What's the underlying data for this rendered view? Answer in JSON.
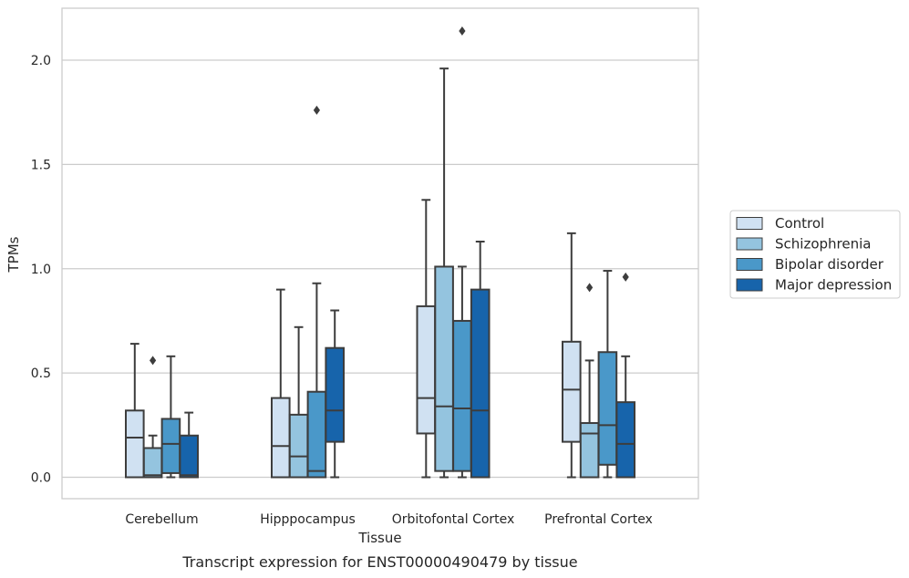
{
  "chart_data": {
    "type": "box",
    "title": "",
    "caption": "Transcript expression for ENST00000490479 by tissue",
    "xlabel": "Tissue",
    "ylabel": "TPMs",
    "ylim": [
      -0.1,
      2.27
    ],
    "yticks": [
      0.0,
      0.5,
      1.0,
      1.5,
      2.0
    ],
    "ytick_labels": [
      "0.0",
      "0.5",
      "1.0",
      "1.5",
      "2.0"
    ],
    "grid": "horizontal",
    "legend_position": "right",
    "categories": [
      "Cerebellum",
      "Hipppocampus",
      "Orbitofontal Cortex",
      "Prefrontal Cortex"
    ],
    "series": [
      {
        "name": "Control",
        "color": "#d0e1f2",
        "boxes": [
          {
            "whislo": 0.0,
            "q1": 0.0,
            "med": 0.19,
            "q3": 0.32,
            "whishi": 0.64,
            "fliers": []
          },
          {
            "whislo": 0.0,
            "q1": 0.0,
            "med": 0.15,
            "q3": 0.38,
            "whishi": 0.9,
            "fliers": []
          },
          {
            "whislo": 0.0,
            "q1": 0.21,
            "med": 0.38,
            "q3": 0.82,
            "whishi": 1.33,
            "fliers": []
          },
          {
            "whislo": 0.0,
            "q1": 0.17,
            "med": 0.42,
            "q3": 0.65,
            "whishi": 1.17,
            "fliers": []
          }
        ]
      },
      {
        "name": "Schizophrenia",
        "color": "#94c4df",
        "boxes": [
          {
            "whislo": 0.0,
            "q1": 0.0,
            "med": 0.01,
            "q3": 0.14,
            "whishi": 0.2,
            "fliers": [
              0.56
            ]
          },
          {
            "whislo": 0.0,
            "q1": 0.0,
            "med": 0.1,
            "q3": 0.3,
            "whishi": 0.72,
            "fliers": []
          },
          {
            "whislo": 0.0,
            "q1": 0.03,
            "med": 0.34,
            "q3": 1.01,
            "whishi": 1.96,
            "fliers": []
          },
          {
            "whislo": 0.0,
            "q1": 0.0,
            "med": 0.21,
            "q3": 0.26,
            "whishi": 0.56,
            "fliers": [
              0.91
            ]
          }
        ]
      },
      {
        "name": "Bipolar disorder",
        "color": "#4a98c9",
        "boxes": [
          {
            "whislo": 0.0,
            "q1": 0.02,
            "med": 0.16,
            "q3": 0.28,
            "whishi": 0.58,
            "fliers": []
          },
          {
            "whislo": 0.0,
            "q1": 0.0,
            "med": 0.03,
            "q3": 0.41,
            "whishi": 0.93,
            "fliers": [
              1.76
            ]
          },
          {
            "whislo": 0.0,
            "q1": 0.03,
            "med": 0.33,
            "q3": 0.75,
            "whishi": 1.01,
            "fliers": [
              2.14
            ]
          },
          {
            "whislo": 0.0,
            "q1": 0.06,
            "med": 0.25,
            "q3": 0.6,
            "whishi": 0.99,
            "fliers": []
          }
        ]
      },
      {
        "name": "Major depression",
        "color": "#1764ab",
        "boxes": [
          {
            "whislo": 0.0,
            "q1": 0.0,
            "med": 0.01,
            "q3": 0.2,
            "whishi": 0.31,
            "fliers": []
          },
          {
            "whislo": 0.0,
            "q1": 0.17,
            "med": 0.32,
            "q3": 0.62,
            "whishi": 0.8,
            "fliers": []
          },
          {
            "whislo": 0.0,
            "q1": 0.0,
            "med": 0.32,
            "q3": 0.9,
            "whishi": 1.13,
            "fliers": []
          },
          {
            "whislo": 0.0,
            "q1": 0.0,
            "med": 0.16,
            "q3": 0.36,
            "whishi": 0.58,
            "fliers": [
              0.96
            ]
          }
        ]
      }
    ]
  }
}
